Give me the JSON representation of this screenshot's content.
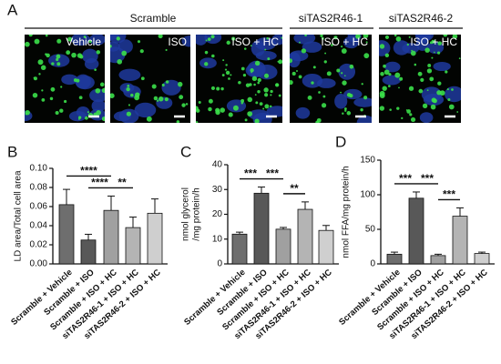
{
  "panel_labels": [
    "A",
    "B",
    "C",
    "D"
  ],
  "panel_a": {
    "groups": [
      "Scramble",
      "siTAS2R46-1",
      "siTAS2R46-2"
    ],
    "image_labels": [
      "Vehicle",
      "ISO",
      "ISO + HC",
      "ISO + HC",
      "ISO + HC"
    ]
  },
  "chart_data": [
    {
      "type": "bar",
      "ylabel": [
        "LD area/Total cell area"
      ],
      "categories": [
        "Scramble + Vehicle",
        "Scramble + ISO",
        "Scramble + ISO + HC",
        "siTAS2R46-1 + ISO + HC",
        "siTAS2R46-2 + ISO + HC"
      ],
      "values": [
        0.062,
        0.025,
        0.056,
        0.038,
        0.053
      ],
      "errors": [
        0.016,
        0.006,
        0.015,
        0.011,
        0.015
      ],
      "colors": [
        "#6e6e6e",
        "#585858",
        "#a0a0a0",
        "#b4b4b4",
        "#cfcfcf"
      ],
      "ylim": [
        0,
        0.1
      ],
      "yticks": [
        {
          "value": 0,
          "label": "0.00"
        },
        {
          "value": 0.02,
          "label": "0.02"
        },
        {
          "value": 0.04,
          "label": "0.04"
        },
        {
          "value": 0.06,
          "label": "0.06"
        },
        {
          "value": 0.08,
          "label": "0.08"
        },
        {
          "value": 0.1,
          "label": "0.10"
        }
      ],
      "comparisons": [
        {
          "label": "****",
          "between": [
            "Scramble + ISO",
            "Scramble + ISO + HC"
          ]
        },
        {
          "label": "****",
          "between": [
            "Scramble + Vehicle",
            "Scramble + ISO + HC"
          ]
        },
        {
          "label": "**",
          "between": [
            "Scramble + ISO + HC",
            "siTAS2R46-1 + ISO + HC"
          ]
        }
      ]
    },
    {
      "type": "bar",
      "ylabel": [
        "nmol glycerol",
        "/mg protein/h"
      ],
      "categories": [
        "Scramble + Vehicle",
        "Scramble + ISO",
        "Scramble + ISO + HC",
        "siTAS2R46-1 + ISO + HC",
        "siTAS2R46-2 + ISO + HC"
      ],
      "values": [
        12,
        28.5,
        14,
        22,
        13.5
      ],
      "errors": [
        0.8,
        2.5,
        0.7,
        3,
        2
      ],
      "colors": [
        "#6e6e6e",
        "#585858",
        "#a0a0a0",
        "#b4b4b4",
        "#cfcfcf"
      ],
      "ylim": [
        0,
        40
      ],
      "yticks": [
        0,
        10,
        20,
        30,
        40
      ],
      "comparisons": [
        {
          "label": "**",
          "between": [
            "Scramble + ISO + HC",
            "siTAS2R46-1 + ISO + HC"
          ]
        },
        {
          "label": "***",
          "between": [
            "Scramble + ISO",
            "Scramble + ISO + HC"
          ]
        },
        {
          "label": "***",
          "between": [
            "Scramble + Vehicle",
            "Scramble + ISO"
          ]
        }
      ]
    },
    {
      "type": "bar",
      "ylabel": [
        "nmol FFA/mg protein/h"
      ],
      "categories": [
        "Scramble + Vehicle",
        "Scramble + ISO",
        "Scramble + ISO + HC",
        "siTAS2R46-1 + ISO + HC",
        "siTAS2R46-2 + ISO + HC"
      ],
      "values": [
        14,
        95,
        12,
        69,
        15
      ],
      "errors": [
        3,
        9,
        2,
        12,
        2
      ],
      "colors": [
        "#6e6e6e",
        "#585858",
        "#a0a0a0",
        "#b4b4b4",
        "#cfcfcf"
      ],
      "ylim": [
        0,
        150
      ],
      "yticks": [
        0,
        50,
        100,
        150
      ],
      "comparisons": [
        {
          "label": "***",
          "between": [
            "Scramble + ISO + HC",
            "siTAS2R46-1 + ISO + HC"
          ]
        },
        {
          "label": "***",
          "between": [
            "Scramble + ISO",
            "Scramble + ISO + HC"
          ]
        },
        {
          "label": "***",
          "between": [
            "Scramble + Vehicle",
            "Scramble + ISO"
          ]
        }
      ]
    }
  ]
}
